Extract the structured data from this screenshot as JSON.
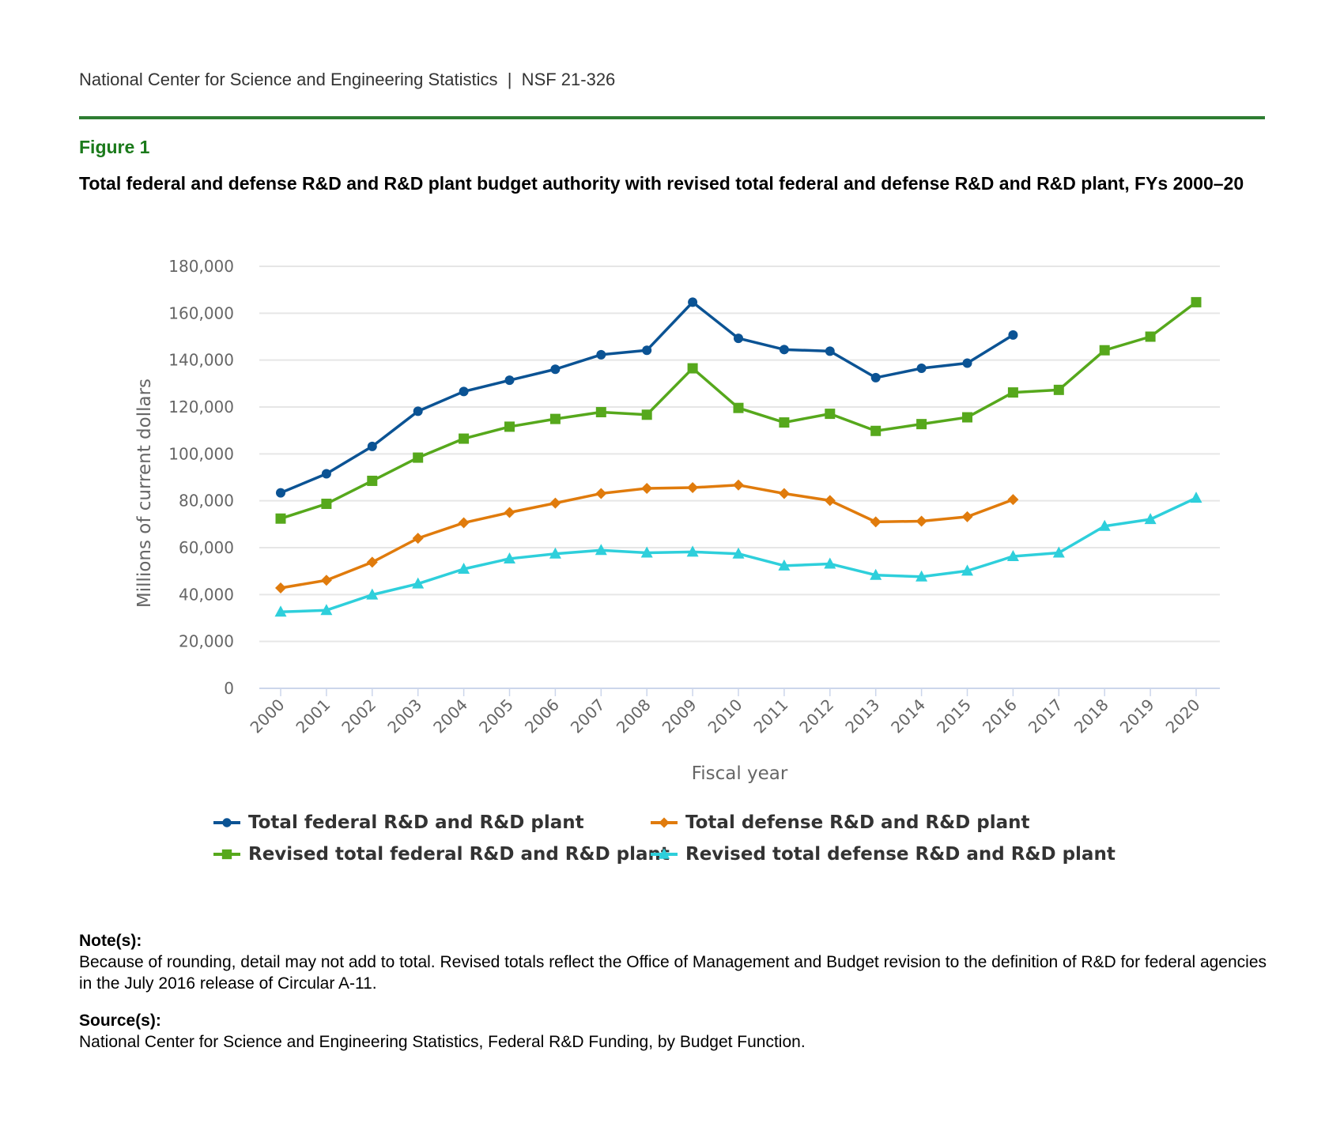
{
  "header": {
    "text": "National Center for Science and Engineering Statistics  |  NSF 21-326"
  },
  "figure_label": "Figure 1",
  "title": "Total federal and defense R&D and R&D plant budget authority with revised total federal and defense R&D and R&D plant, FYs 2000–20",
  "chart_data": {
    "type": "line",
    "xlabel": "Fiscal year",
    "ylabel": "Millions of current dollars",
    "ylim": [
      0,
      180000
    ],
    "yticks": [
      0,
      20000,
      40000,
      60000,
      80000,
      100000,
      120000,
      140000,
      160000,
      180000
    ],
    "ytick_labels": [
      "0",
      "20,000",
      "40,000",
      "60,000",
      "80,000",
      "100,000",
      "120,000",
      "140,000",
      "160,000",
      "180,000"
    ],
    "categories": [
      "2000",
      "2001",
      "2002",
      "2003",
      "2004",
      "2005",
      "2006",
      "2007",
      "2008",
      "2009",
      "2010",
      "2011",
      "2012",
      "2013",
      "2014",
      "2015",
      "2016",
      "2017",
      "2018",
      "2019",
      "2020"
    ],
    "grid": true,
    "legend_position": "bottom",
    "series": [
      {
        "name": "Total federal R&D and R&D plant",
        "color": "#0b5394",
        "marker": "circle",
        "values": [
          83400,
          91500,
          103200,
          118200,
          126600,
          131400,
          136100,
          142300,
          144200,
          164700,
          149300,
          144500,
          143800,
          132500,
          136500,
          138700,
          150700,
          null,
          null,
          null,
          null
        ]
      },
      {
        "name": "Total defense R&D and R&D plant",
        "color": "#e07b0c",
        "marker": "diamond",
        "values": [
          42800,
          46100,
          53800,
          64000,
          70600,
          75000,
          79000,
          83100,
          85300,
          85600,
          86700,
          83100,
          80100,
          71000,
          71300,
          73200,
          80500,
          null,
          null,
          null,
          null
        ]
      },
      {
        "name": "Revised total federal R&D and R&D plant",
        "color": "#56a81c",
        "marker": "square",
        "values": [
          72400,
          78700,
          88500,
          98400,
          106500,
          111600,
          114900,
          117800,
          116700,
          136500,
          119600,
          113400,
          117100,
          109800,
          112700,
          115600,
          126200,
          127300,
          144200,
          150000,
          164700
        ]
      },
      {
        "name": "Revised total defense R&D and R&D plant",
        "color": "#2ecfdb",
        "marker": "triangle",
        "values": [
          32600,
          33300,
          39900,
          44600,
          50900,
          55300,
          57400,
          58900,
          57800,
          58200,
          57400,
          52300,
          53100,
          48300,
          47600,
          50100,
          56300,
          57800,
          69200,
          72100,
          81200
        ]
      }
    ]
  },
  "notes": {
    "label": "Note(s):",
    "text": "Because of rounding, detail may not add to total. Revised totals reflect the Office of Management and Budget revision to the definition of R&D for federal agencies in the July 2016 release of Circular A-11."
  },
  "source": {
    "label": "Source(s):",
    "text": "National Center for Science and Engineering Statistics, Federal R&D Funding, by Budget Function."
  }
}
